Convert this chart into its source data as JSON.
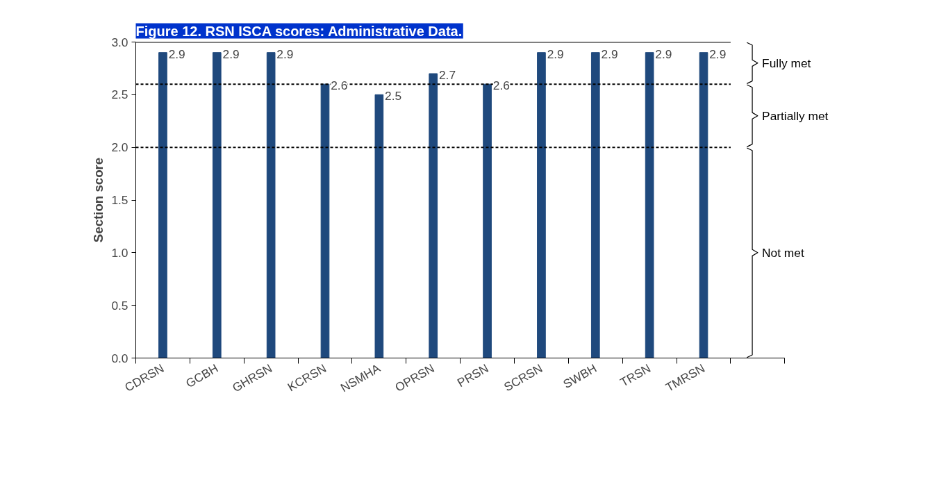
{
  "chart_data": {
    "type": "bar",
    "title": "Figure 12. RSN ISCA scores: Administrative Data.",
    "ylabel": "Section score",
    "categories": [
      "CDRSN",
      "GCBH",
      "GHRSN",
      "KCRSN",
      "NSMHA",
      "OPRSN",
      "PRSN",
      "SCRSN",
      "SWBH",
      "TRSN",
      "TMRSN",
      null
    ],
    "values": [
      2.9,
      2.9,
      2.9,
      2.6,
      2.5,
      2.7,
      2.6,
      2.9,
      2.9,
      2.9,
      2.9,
      null
    ],
    "color": "#1f497d",
    "data_labels": true,
    "grid": false,
    "ylim": [
      0,
      3.0
    ],
    "yticks": [
      {
        "value": 0,
        "label": "0.0"
      },
      {
        "value": 0.5,
        "label": "0.5"
      },
      {
        "value": 1,
        "label": "1.0"
      },
      {
        "value": 1.5,
        "label": "1.5"
      },
      {
        "value": 2,
        "label": "2.0"
      },
      {
        "value": 2.5,
        "label": "2.5"
      },
      {
        "value": 3,
        "label": "3.0"
      }
    ],
    "ref_lines": [
      {
        "axis": "y",
        "value": 3.0,
        "line_style": "solid",
        "color": "#000000"
      },
      {
        "axis": "y",
        "value": 2.6,
        "line_style": "dashed",
        "color": "#000000"
      },
      {
        "axis": "y",
        "value": 2.0,
        "line_style": "dashed",
        "color": "#000000"
      }
    ],
    "annotations": [
      "Fully met",
      "Partially met",
      "Not met"
    ]
  }
}
